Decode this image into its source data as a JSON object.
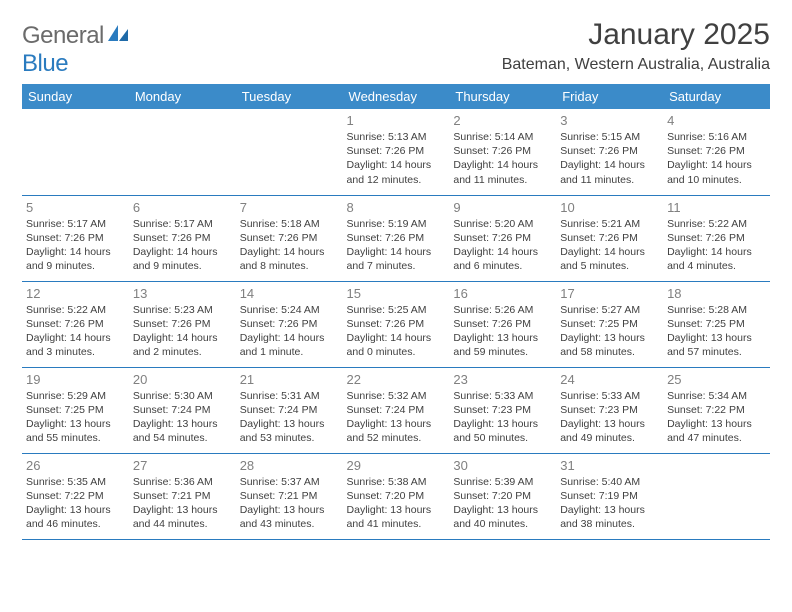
{
  "brand": {
    "part1": "General",
    "part2": "Blue"
  },
  "title": "January 2025",
  "location": "Bateman, Western Australia, Australia",
  "colors": {
    "header_bg": "#3b8bc9",
    "header_text": "#ffffff",
    "border": "#2a7bbf",
    "daynum": "#808080",
    "body_text": "#404040",
    "logo_gray": "#6b6b6b",
    "logo_blue": "#2a7bbf",
    "page_bg": "#ffffff"
  },
  "weekdays": [
    "Sunday",
    "Monday",
    "Tuesday",
    "Wednesday",
    "Thursday",
    "Friday",
    "Saturday"
  ],
  "weeks": [
    [
      null,
      null,
      null,
      {
        "n": "1",
        "sr": "Sunrise: 5:13 AM",
        "ss": "Sunset: 7:26 PM",
        "d1": "Daylight: 14 hours",
        "d2": "and 12 minutes."
      },
      {
        "n": "2",
        "sr": "Sunrise: 5:14 AM",
        "ss": "Sunset: 7:26 PM",
        "d1": "Daylight: 14 hours",
        "d2": "and 11 minutes."
      },
      {
        "n": "3",
        "sr": "Sunrise: 5:15 AM",
        "ss": "Sunset: 7:26 PM",
        "d1": "Daylight: 14 hours",
        "d2": "and 11 minutes."
      },
      {
        "n": "4",
        "sr": "Sunrise: 5:16 AM",
        "ss": "Sunset: 7:26 PM",
        "d1": "Daylight: 14 hours",
        "d2": "and 10 minutes."
      }
    ],
    [
      {
        "n": "5",
        "sr": "Sunrise: 5:17 AM",
        "ss": "Sunset: 7:26 PM",
        "d1": "Daylight: 14 hours",
        "d2": "and 9 minutes."
      },
      {
        "n": "6",
        "sr": "Sunrise: 5:17 AM",
        "ss": "Sunset: 7:26 PM",
        "d1": "Daylight: 14 hours",
        "d2": "and 9 minutes."
      },
      {
        "n": "7",
        "sr": "Sunrise: 5:18 AM",
        "ss": "Sunset: 7:26 PM",
        "d1": "Daylight: 14 hours",
        "d2": "and 8 minutes."
      },
      {
        "n": "8",
        "sr": "Sunrise: 5:19 AM",
        "ss": "Sunset: 7:26 PM",
        "d1": "Daylight: 14 hours",
        "d2": "and 7 minutes."
      },
      {
        "n": "9",
        "sr": "Sunrise: 5:20 AM",
        "ss": "Sunset: 7:26 PM",
        "d1": "Daylight: 14 hours",
        "d2": "and 6 minutes."
      },
      {
        "n": "10",
        "sr": "Sunrise: 5:21 AM",
        "ss": "Sunset: 7:26 PM",
        "d1": "Daylight: 14 hours",
        "d2": "and 5 minutes."
      },
      {
        "n": "11",
        "sr": "Sunrise: 5:22 AM",
        "ss": "Sunset: 7:26 PM",
        "d1": "Daylight: 14 hours",
        "d2": "and 4 minutes."
      }
    ],
    [
      {
        "n": "12",
        "sr": "Sunrise: 5:22 AM",
        "ss": "Sunset: 7:26 PM",
        "d1": "Daylight: 14 hours",
        "d2": "and 3 minutes."
      },
      {
        "n": "13",
        "sr": "Sunrise: 5:23 AM",
        "ss": "Sunset: 7:26 PM",
        "d1": "Daylight: 14 hours",
        "d2": "and 2 minutes."
      },
      {
        "n": "14",
        "sr": "Sunrise: 5:24 AM",
        "ss": "Sunset: 7:26 PM",
        "d1": "Daylight: 14 hours",
        "d2": "and 1 minute."
      },
      {
        "n": "15",
        "sr": "Sunrise: 5:25 AM",
        "ss": "Sunset: 7:26 PM",
        "d1": "Daylight: 14 hours",
        "d2": "and 0 minutes."
      },
      {
        "n": "16",
        "sr": "Sunrise: 5:26 AM",
        "ss": "Sunset: 7:26 PM",
        "d1": "Daylight: 13 hours",
        "d2": "and 59 minutes."
      },
      {
        "n": "17",
        "sr": "Sunrise: 5:27 AM",
        "ss": "Sunset: 7:25 PM",
        "d1": "Daylight: 13 hours",
        "d2": "and 58 minutes."
      },
      {
        "n": "18",
        "sr": "Sunrise: 5:28 AM",
        "ss": "Sunset: 7:25 PM",
        "d1": "Daylight: 13 hours",
        "d2": "and 57 minutes."
      }
    ],
    [
      {
        "n": "19",
        "sr": "Sunrise: 5:29 AM",
        "ss": "Sunset: 7:25 PM",
        "d1": "Daylight: 13 hours",
        "d2": "and 55 minutes."
      },
      {
        "n": "20",
        "sr": "Sunrise: 5:30 AM",
        "ss": "Sunset: 7:24 PM",
        "d1": "Daylight: 13 hours",
        "d2": "and 54 minutes."
      },
      {
        "n": "21",
        "sr": "Sunrise: 5:31 AM",
        "ss": "Sunset: 7:24 PM",
        "d1": "Daylight: 13 hours",
        "d2": "and 53 minutes."
      },
      {
        "n": "22",
        "sr": "Sunrise: 5:32 AM",
        "ss": "Sunset: 7:24 PM",
        "d1": "Daylight: 13 hours",
        "d2": "and 52 minutes."
      },
      {
        "n": "23",
        "sr": "Sunrise: 5:33 AM",
        "ss": "Sunset: 7:23 PM",
        "d1": "Daylight: 13 hours",
        "d2": "and 50 minutes."
      },
      {
        "n": "24",
        "sr": "Sunrise: 5:33 AM",
        "ss": "Sunset: 7:23 PM",
        "d1": "Daylight: 13 hours",
        "d2": "and 49 minutes."
      },
      {
        "n": "25",
        "sr": "Sunrise: 5:34 AM",
        "ss": "Sunset: 7:22 PM",
        "d1": "Daylight: 13 hours",
        "d2": "and 47 minutes."
      }
    ],
    [
      {
        "n": "26",
        "sr": "Sunrise: 5:35 AM",
        "ss": "Sunset: 7:22 PM",
        "d1": "Daylight: 13 hours",
        "d2": "and 46 minutes."
      },
      {
        "n": "27",
        "sr": "Sunrise: 5:36 AM",
        "ss": "Sunset: 7:21 PM",
        "d1": "Daylight: 13 hours",
        "d2": "and 44 minutes."
      },
      {
        "n": "28",
        "sr": "Sunrise: 5:37 AM",
        "ss": "Sunset: 7:21 PM",
        "d1": "Daylight: 13 hours",
        "d2": "and 43 minutes."
      },
      {
        "n": "29",
        "sr": "Sunrise: 5:38 AM",
        "ss": "Sunset: 7:20 PM",
        "d1": "Daylight: 13 hours",
        "d2": "and 41 minutes."
      },
      {
        "n": "30",
        "sr": "Sunrise: 5:39 AM",
        "ss": "Sunset: 7:20 PM",
        "d1": "Daylight: 13 hours",
        "d2": "and 40 minutes."
      },
      {
        "n": "31",
        "sr": "Sunrise: 5:40 AM",
        "ss": "Sunset: 7:19 PM",
        "d1": "Daylight: 13 hours",
        "d2": "and 38 minutes."
      },
      null
    ]
  ]
}
